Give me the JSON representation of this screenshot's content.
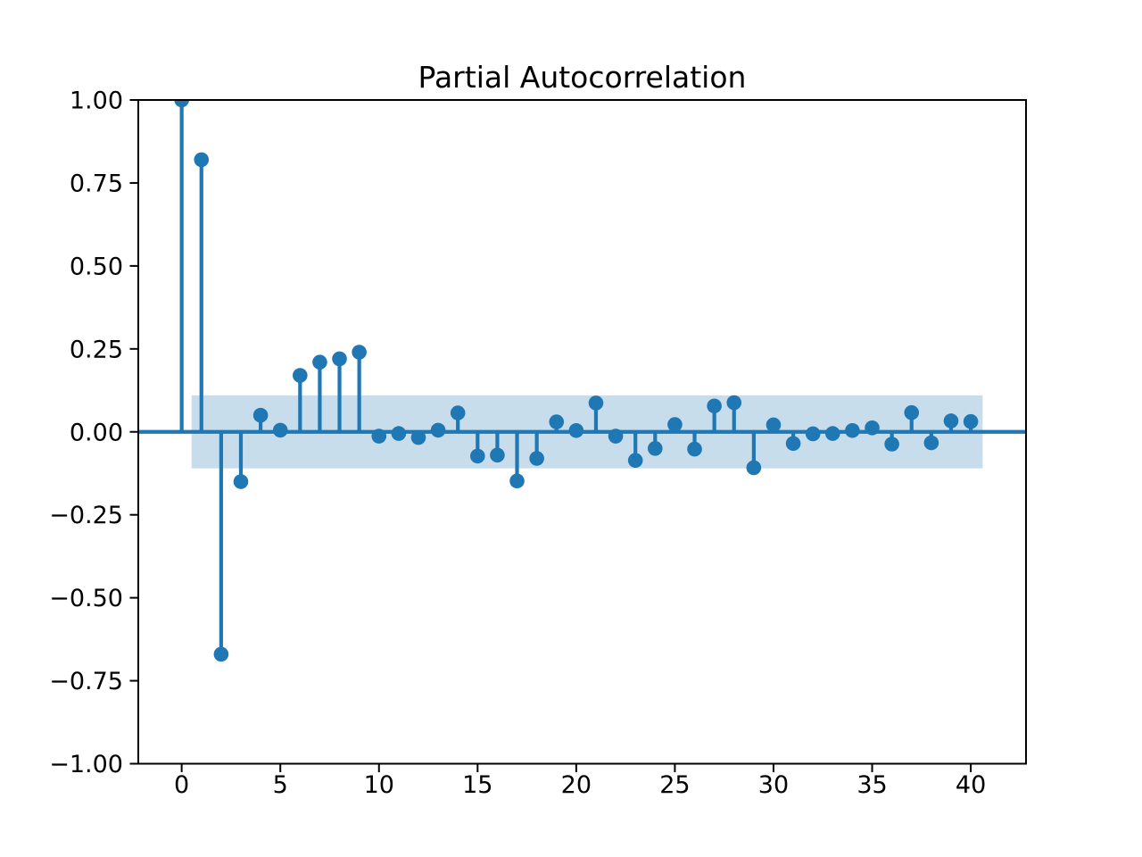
{
  "figure": {
    "background": "#ffffff"
  },
  "chart_data": {
    "type": "stem",
    "title": "Partial Autocorrelation",
    "xlabel": "",
    "ylabel": "",
    "x": [
      0,
      1,
      2,
      3,
      4,
      5,
      6,
      7,
      8,
      9,
      10,
      11,
      12,
      13,
      14,
      15,
      16,
      17,
      18,
      19,
      20,
      21,
      22,
      23,
      24,
      25,
      26,
      27,
      28,
      29,
      30,
      31,
      32,
      33,
      34,
      35,
      36,
      37,
      38,
      39,
      40
    ],
    "values": [
      1.0,
      0.82,
      -0.67,
      -0.15,
      0.05,
      0.005,
      0.17,
      0.21,
      0.22,
      0.24,
      -0.013,
      -0.005,
      -0.017,
      0.005,
      0.057,
      -0.073,
      -0.07,
      -0.148,
      -0.08,
      0.03,
      0.004,
      0.087,
      -0.013,
      -0.086,
      -0.05,
      0.022,
      -0.052,
      0.078,
      0.088,
      -0.108,
      0.021,
      -0.035,
      -0.006,
      -0.005,
      0.004,
      0.012,
      -0.037,
      0.058,
      -0.033,
      0.033,
      0.031
    ],
    "confidence_band": {
      "lower": -0.11,
      "upper": 0.11,
      "x_start": 0.5,
      "x_end": 40.6
    },
    "xlim": [
      -2.2,
      42.8
    ],
    "ylim": [
      -1.0,
      1.0
    ],
    "xticks": [
      0,
      5,
      10,
      15,
      20,
      25,
      30,
      35,
      40
    ],
    "xtick_labels": [
      "0",
      "5",
      "10",
      "15",
      "20",
      "25",
      "30",
      "35",
      "40"
    ],
    "yticks": [
      -1.0,
      -0.75,
      -0.5,
      -0.25,
      0.0,
      0.25,
      0.5,
      0.75,
      1.0
    ],
    "ytick_labels": [
      "−1.00",
      "−0.75",
      "−0.50",
      "−0.25",
      "0.00",
      "0.25",
      "0.50",
      "0.75",
      "1.00"
    ],
    "grid": false,
    "legend": null,
    "colors": {
      "stem": "#1f77b4",
      "marker": "#1f77b4",
      "zero_line": "#1f77b4",
      "band": "#1f77b4",
      "band_opacity": 0.25,
      "axis": "#000000"
    }
  }
}
